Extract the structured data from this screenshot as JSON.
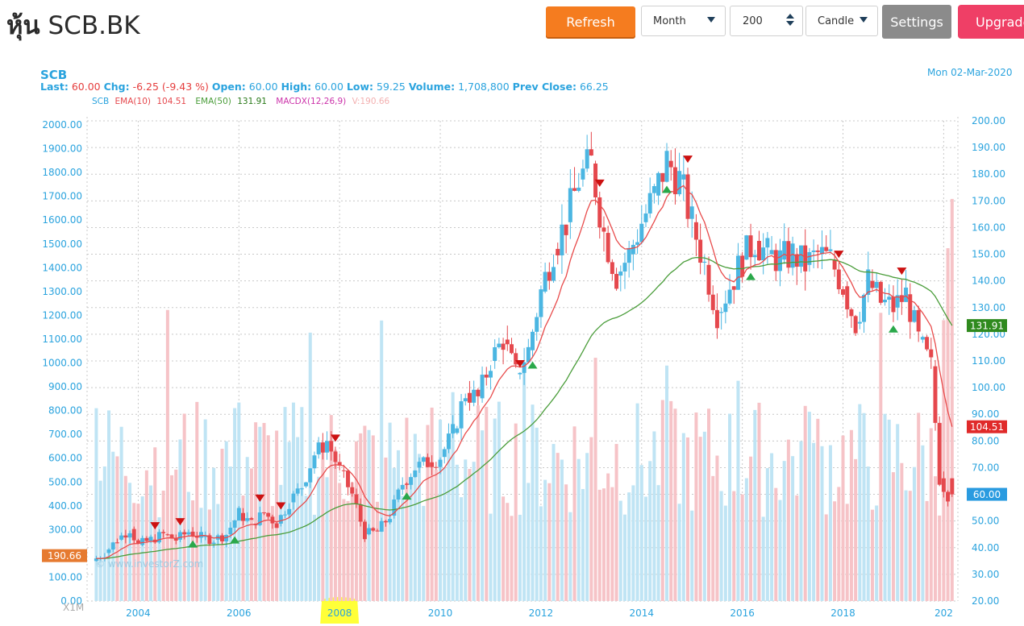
{
  "header": {
    "title_thai": "หุ้น",
    "title_symbol": "SCB.BK",
    "refresh_label": "Refresh",
    "period_value": "Month",
    "count_value": "200",
    "chart_type_value": "Candle",
    "settings_label": "Settings",
    "upgrade_label": "Upgrade"
  },
  "chart_header": {
    "symbol": "SCB",
    "date": "Mon 02-Mar-2020",
    "last_label": "Last:",
    "last": "60.00",
    "chg_label": "Chg:",
    "chg": "-6.25 (-9.43 %)",
    "open_label": "Open:",
    "open": "60.00",
    "high_label": "High:",
    "high": "60.00",
    "low_label": "Low:",
    "low": "59.25",
    "volume_label": "Volume:",
    "volume": "1,708,800",
    "prev_close_label": "Prev Close:",
    "prev_close": "66.25"
  },
  "legend": {
    "sym": "SCB",
    "ema10_label": "EMA(10)",
    "ema10_value": "104.51",
    "ema50_label": "EMA(50)",
    "ema50_value": "131.91",
    "macd_label": "MACDX(12,26,9)",
    "v_label": "V:190.66"
  },
  "colors": {
    "up": "#4bb6e2",
    "down": "#e5484d",
    "ema10": "#e84b4b",
    "ema50": "#4a9d3a",
    "accent": "#2aa3de",
    "refresh": "#f57c1f",
    "upgrade": "#ef3f66"
  },
  "chart_data": {
    "type": "candlestick",
    "watermark": "© www.investorZ.com",
    "x_ticks": [
      "2004",
      "2006",
      "2008",
      "2010",
      "2012",
      "2014",
      "2016",
      "2018",
      "202"
    ],
    "y_right_ticks": [
      "200.00",
      "190.00",
      "180.00",
      "170.00",
      "160.00",
      "150.00",
      "140.00",
      "130.00",
      "120.00",
      "110.00",
      "100.00",
      "90.00",
      "80.00",
      "70.00",
      "60.00",
      "50.00",
      "40.00",
      "30.00",
      "20.00"
    ],
    "y_left_ticks": [
      "2000.00",
      "1900.00",
      "1800.00",
      "1700.00",
      "1600.00",
      "1500.00",
      "1400.00",
      "1300.00",
      "1200.00",
      "1100.00",
      "1000.00",
      "900.00",
      "800.00",
      "700.00",
      "600.00",
      "500.00",
      "400.00",
      "300.00",
      "200.00",
      "100.00",
      "0.00"
    ],
    "left_axis_unit": "X1M",
    "price_range": [
      20,
      200
    ],
    "volume_range": [
      0,
      2000
    ],
    "tags": {
      "ema50": "131.91",
      "ema10": "104.51",
      "last": "60.00",
      "volume": "190.66"
    },
    "candles": [
      [
        "2003-03",
        35,
        35
      ],
      [
        "2003-06",
        34,
        38
      ],
      [
        "2003-09",
        38,
        43
      ],
      [
        "2003-12",
        43,
        47
      ],
      [
        "2004-02",
        47,
        41
      ],
      [
        "2004-05",
        41,
        43
      ],
      [
        "2004-08",
        43,
        45
      ],
      [
        "2004-11",
        45,
        43
      ],
      [
        "2005-02",
        43,
        46
      ],
      [
        "2005-05",
        46,
        44
      ],
      [
        "2005-08",
        44,
        43
      ],
      [
        "2005-11",
        43,
        45
      ],
      [
        "2006-02",
        45,
        53
      ],
      [
        "2006-05",
        53,
        49
      ],
      [
        "2006-08",
        49,
        53
      ],
      [
        "2006-11",
        53,
        49
      ],
      [
        "2007-02",
        49,
        57
      ],
      [
        "2007-05",
        57,
        63
      ],
      [
        "2007-08",
        63,
        75
      ],
      [
        "2007-11",
        75,
        80
      ],
      [
        "2008-02",
        80,
        69
      ],
      [
        "2008-05",
        69,
        60
      ],
      [
        "2008-08",
        60,
        45
      ],
      [
        "2008-11",
        45,
        46
      ],
      [
        "2009-02",
        46,
        52
      ],
      [
        "2009-05",
        52,
        64
      ],
      [
        "2009-08",
        64,
        70
      ],
      [
        "2009-11",
        70,
        72
      ],
      [
        "2010-02",
        72,
        74
      ],
      [
        "2010-05",
        74,
        83
      ],
      [
        "2010-08",
        83,
        98
      ],
      [
        "2010-11",
        98,
        96
      ],
      [
        "2011-02",
        96,
        110
      ],
      [
        "2011-05",
        110,
        118
      ],
      [
        "2011-08",
        118,
        105
      ],
      [
        "2011-11",
        105,
        114
      ],
      [
        "2012-02",
        114,
        136
      ],
      [
        "2012-05",
        136,
        152
      ],
      [
        "2012-08",
        152,
        162
      ],
      [
        "2012-11",
        162,
        178
      ],
      [
        "2013-02",
        178,
        184
      ],
      [
        "2013-05",
        184,
        158
      ],
      [
        "2013-08",
        158,
        142
      ],
      [
        "2013-11",
        142,
        150
      ],
      [
        "2014-02",
        150,
        162
      ],
      [
        "2014-05",
        162,
        172
      ],
      [
        "2014-08",
        172,
        185
      ],
      [
        "2014-11",
        185,
        178
      ],
      [
        "2015-02",
        178,
        162
      ],
      [
        "2015-05",
        162,
        146
      ],
      [
        "2015-08",
        146,
        128
      ],
      [
        "2015-11",
        128,
        138
      ],
      [
        "2016-02",
        138,
        148
      ],
      [
        "2016-05",
        148,
        155
      ],
      [
        "2016-08",
        155,
        150
      ],
      [
        "2016-11",
        150,
        148
      ],
      [
        "2017-02",
        148,
        150
      ],
      [
        "2017-05",
        150,
        146
      ],
      [
        "2017-08",
        146,
        150
      ],
      [
        "2017-11",
        150,
        148
      ],
      [
        "2018-02",
        148,
        138
      ],
      [
        "2018-05",
        138,
        124
      ],
      [
        "2018-08",
        124,
        140
      ],
      [
        "2018-11",
        140,
        132
      ],
      [
        "2019-02",
        132,
        130
      ],
      [
        "2019-05",
        130,
        135
      ],
      [
        "2019-08",
        135,
        118
      ],
      [
        "2019-11",
        118,
        108
      ],
      [
        "2020-01",
        108,
        66
      ],
      [
        "2020-03",
        66,
        60
      ]
    ]
  }
}
